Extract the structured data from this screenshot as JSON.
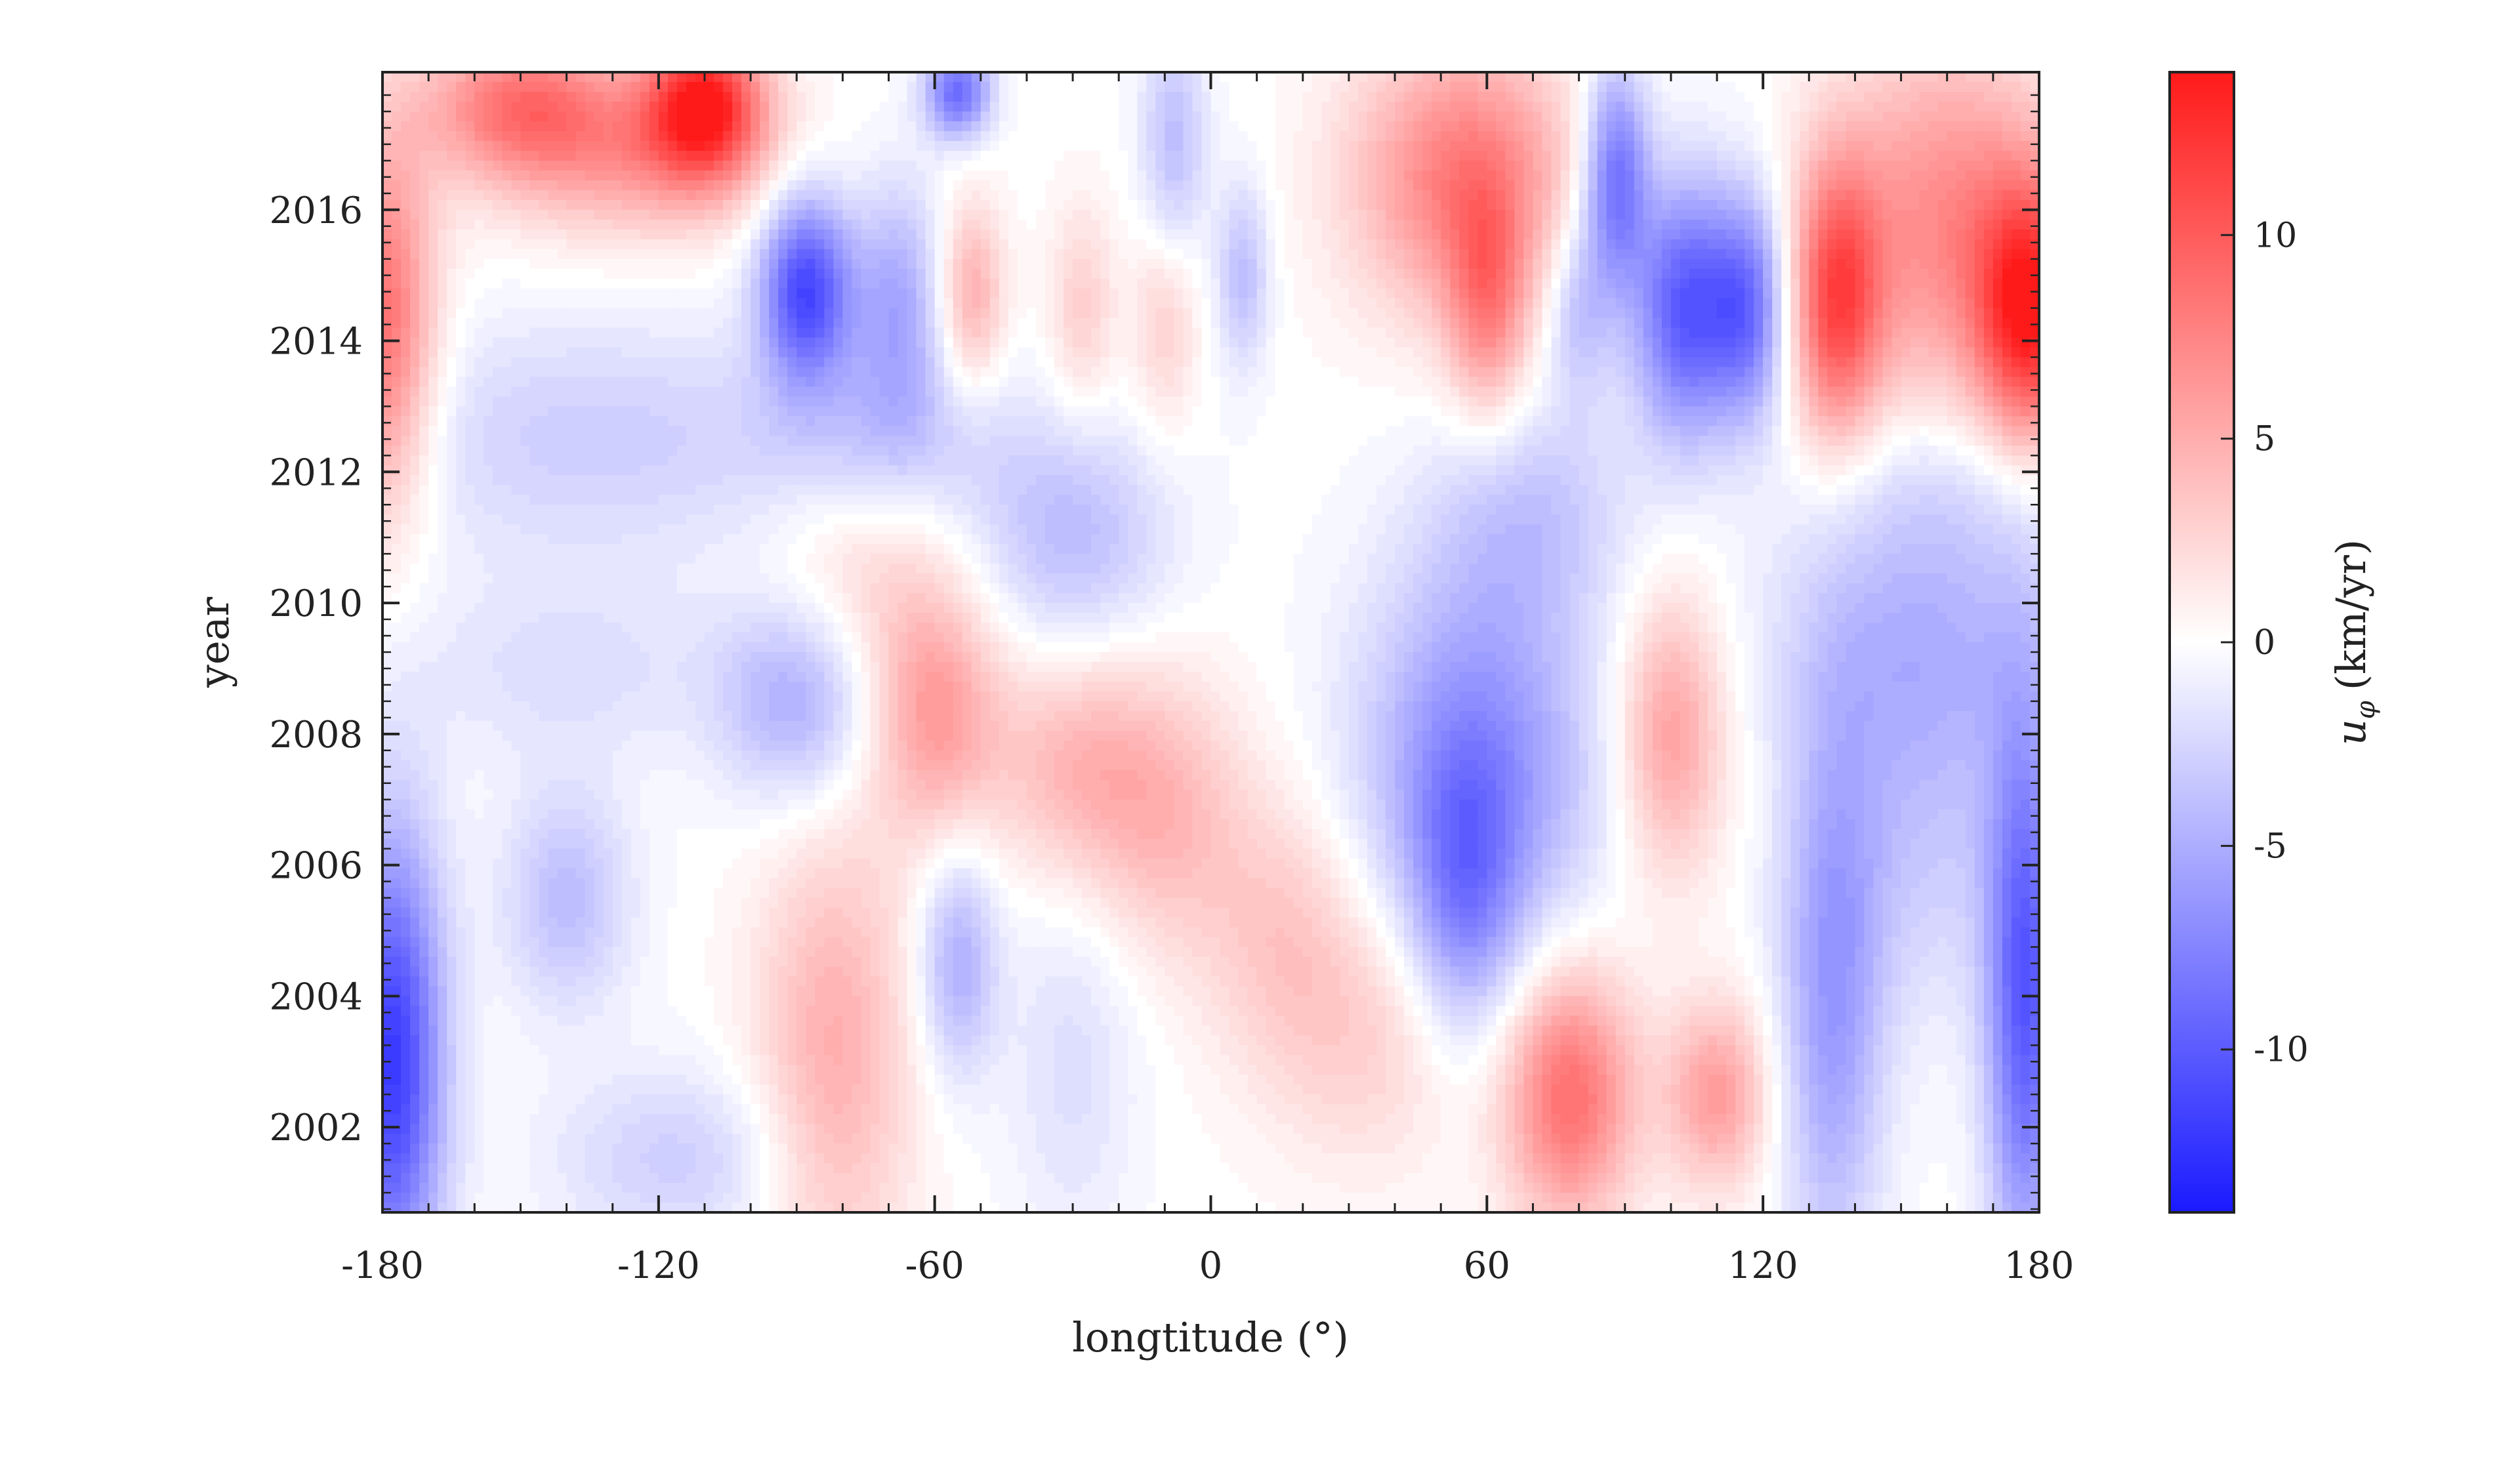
{
  "chart_data": {
    "type": "heatmap",
    "title": "",
    "xlabel": "longtitude (°)",
    "ylabel": "year",
    "colorbar_label_symbol": "u",
    "colorbar_label_subscript": "φ",
    "colorbar_label_units": "(km/yr)",
    "xlim": [
      -180,
      180
    ],
    "ylim": [
      2000.7,
      2018.1
    ],
    "color_range": [
      -14,
      14
    ],
    "colormap": [
      "#1a1aff",
      "#ffffff",
      "#ff1a1a"
    ],
    "x_ticks": [
      -180,
      -120,
      -60,
      0,
      60,
      120,
      180
    ],
    "x_tick_labels": [
      "-180",
      "-120",
      "-60",
      "0",
      "60",
      "120",
      "180"
    ],
    "y_ticks": [
      2002,
      2004,
      2006,
      2008,
      2010,
      2012,
      2014,
      2016
    ],
    "y_tick_labels": [
      "2002",
      "2004",
      "2006",
      "2008",
      "2010",
      "2012",
      "2014",
      "2016"
    ],
    "colorbar_ticks": [
      10,
      5,
      0,
      -5,
      -10
    ],
    "colorbar_tick_labels": [
      "10",
      "5",
      "0",
      "-5",
      "-10"
    ],
    "grid": false,
    "features": [
      {
        "lon": -180,
        "year": 2014.2,
        "value": 9,
        "wlon": 8,
        "wyear": 2.0
      },
      {
        "lon": -150,
        "year": 2017.6,
        "value": 8,
        "wlon": 15,
        "wyear": 0.8
      },
      {
        "lon": -110,
        "year": 2017.6,
        "value": 13,
        "wlon": 9,
        "wyear": 0.8
      },
      {
        "lon": -125,
        "year": 2016.8,
        "value": 5,
        "wlon": 20,
        "wyear": 0.9
      },
      {
        "lon": -55,
        "year": 2017.8,
        "value": -9,
        "wlon": 5,
        "wyear": 0.5
      },
      {
        "lon": -88,
        "year": 2014.8,
        "value": -11,
        "wlon": 7,
        "wyear": 1.0
      },
      {
        "lon": -68,
        "year": 2014.6,
        "value": -5,
        "wlon": 7,
        "wyear": 1.3
      },
      {
        "lon": -52,
        "year": 2014.7,
        "value": 5,
        "wlon": 5,
        "wyear": 1.0
      },
      {
        "lon": -28,
        "year": 2014.5,
        "value": 3,
        "wlon": 5,
        "wyear": 1.1
      },
      {
        "lon": -10,
        "year": 2014.3,
        "value": 3,
        "wlon": 5,
        "wyear": 1.1
      },
      {
        "lon": 7,
        "year": 2015.0,
        "value": -4,
        "wlon": 4,
        "wyear": 1.0
      },
      {
        "lon": -8,
        "year": 2017.0,
        "value": -4,
        "wlon": 5,
        "wyear": 1.3
      },
      {
        "lon": 55,
        "year": 2016.5,
        "value": 8,
        "wlon": 17,
        "wyear": 1.5
      },
      {
        "lon": 60,
        "year": 2014.5,
        "value": 6,
        "wlon": 6,
        "wyear": 1.2
      },
      {
        "lon": 88,
        "year": 2016.5,
        "value": -9,
        "wlon": 5,
        "wyear": 1.2
      },
      {
        "lon": 80,
        "year": 2014.5,
        "value": -4,
        "wlon": 5,
        "wyear": 1.0
      },
      {
        "lon": 103,
        "year": 2014.5,
        "value": -10,
        "wlon": 8,
        "wyear": 1.4
      },
      {
        "lon": 117,
        "year": 2014.5,
        "value": -8,
        "wlon": 6,
        "wyear": 1.2
      },
      {
        "lon": 136,
        "year": 2014.6,
        "value": 10,
        "wlon": 7,
        "wyear": 1.5
      },
      {
        "lon": 178,
        "year": 2014.4,
        "value": 12,
        "wlon": 8,
        "wyear": 1.4
      },
      {
        "lon": 160,
        "year": 2015.8,
        "value": 7,
        "wlon": 17,
        "wyear": 2.0
      },
      {
        "lon": -135,
        "year": 2012.5,
        "value": -3,
        "wlon": 35,
        "wyear": 1.3
      },
      {
        "lon": -70,
        "year": 2012.5,
        "value": -3,
        "wlon": 20,
        "wyear": 1.0
      },
      {
        "lon": -30,
        "year": 2011.0,
        "value": -4,
        "wlon": 15,
        "wyear": 1.2
      },
      {
        "lon": 70,
        "year": 2011.4,
        "value": -3,
        "wlon": 15,
        "wyear": 1.2
      },
      {
        "lon": 160,
        "year": 2011.8,
        "value": -2,
        "wlon": 20,
        "wyear": 1.0
      },
      {
        "lon": 155,
        "year": 2009.5,
        "value": -4,
        "wlon": 22,
        "wyear": 1.5
      },
      {
        "lon": -90,
        "year": 2008.5,
        "value": -5,
        "wlon": 12,
        "wyear": 1.1
      },
      {
        "lon": -140,
        "year": 2009.0,
        "value": -2,
        "wlon": 25,
        "wyear": 1.0
      },
      {
        "lon": -75,
        "year": 2010.6,
        "value": 2.5,
        "wlon": 15,
        "wyear": 1.2
      },
      {
        "lon": -60,
        "year": 2008.3,
        "value": 6,
        "wlon": 10,
        "wyear": 1.3
      },
      {
        "lon": -30,
        "year": 2007.5,
        "value": 4,
        "wlon": 12,
        "wyear": 1.2
      },
      {
        "lon": -10,
        "year": 2006.8,
        "value": 4,
        "wlon": 12,
        "wyear": 1.5
      },
      {
        "lon": 15,
        "year": 2005.0,
        "value": 3,
        "wlon": 12,
        "wyear": 1.5
      },
      {
        "lon": 35,
        "year": 2003.5,
        "value": 3,
        "wlon": 15,
        "wyear": 1.5
      },
      {
        "lon": 58,
        "year": 2007.5,
        "value": -7,
        "wlon": 18,
        "wyear": 2.2
      },
      {
        "lon": 55,
        "year": 2005.5,
        "value": -5,
        "wlon": 8,
        "wyear": 1.5
      },
      {
        "lon": 100,
        "year": 2008.0,
        "value": 6,
        "wlon": 8,
        "wyear": 1.5
      },
      {
        "lon": 78,
        "year": 2002.5,
        "value": 9,
        "wlon": 10,
        "wyear": 1.4
      },
      {
        "lon": 110,
        "year": 2002.5,
        "value": 6,
        "wlon": 8,
        "wyear": 1.0
      },
      {
        "lon": -82,
        "year": 2003.0,
        "value": 5,
        "wlon": 12,
        "wyear": 2.5
      },
      {
        "lon": -55,
        "year": 2004.5,
        "value": -5,
        "wlon": 6,
        "wyear": 1.2
      },
      {
        "lon": -140,
        "year": 2005.5,
        "value": -4,
        "wlon": 10,
        "wyear": 1.2
      },
      {
        "lon": -30,
        "year": 2003.0,
        "value": -2,
        "wlon": 10,
        "wyear": 2.0
      },
      {
        "lon": -178,
        "year": 2003.0,
        "value": -12,
        "wlon": 8,
        "wyear": 2.5
      },
      {
        "lon": 135,
        "year": 2004.0,
        "value": -6,
        "wlon": 8,
        "wyear": 3.0
      },
      {
        "lon": 177,
        "year": 2004.0,
        "value": -10,
        "wlon": 6,
        "wyear": 3.0
      },
      {
        "lon": -115,
        "year": 2001.5,
        "value": -3,
        "wlon": 20,
        "wyear": 1.0
      },
      {
        "lon": 155,
        "year": 2006.5,
        "value": -3,
        "wlon": 15,
        "wyear": 2.0
      }
    ]
  }
}
